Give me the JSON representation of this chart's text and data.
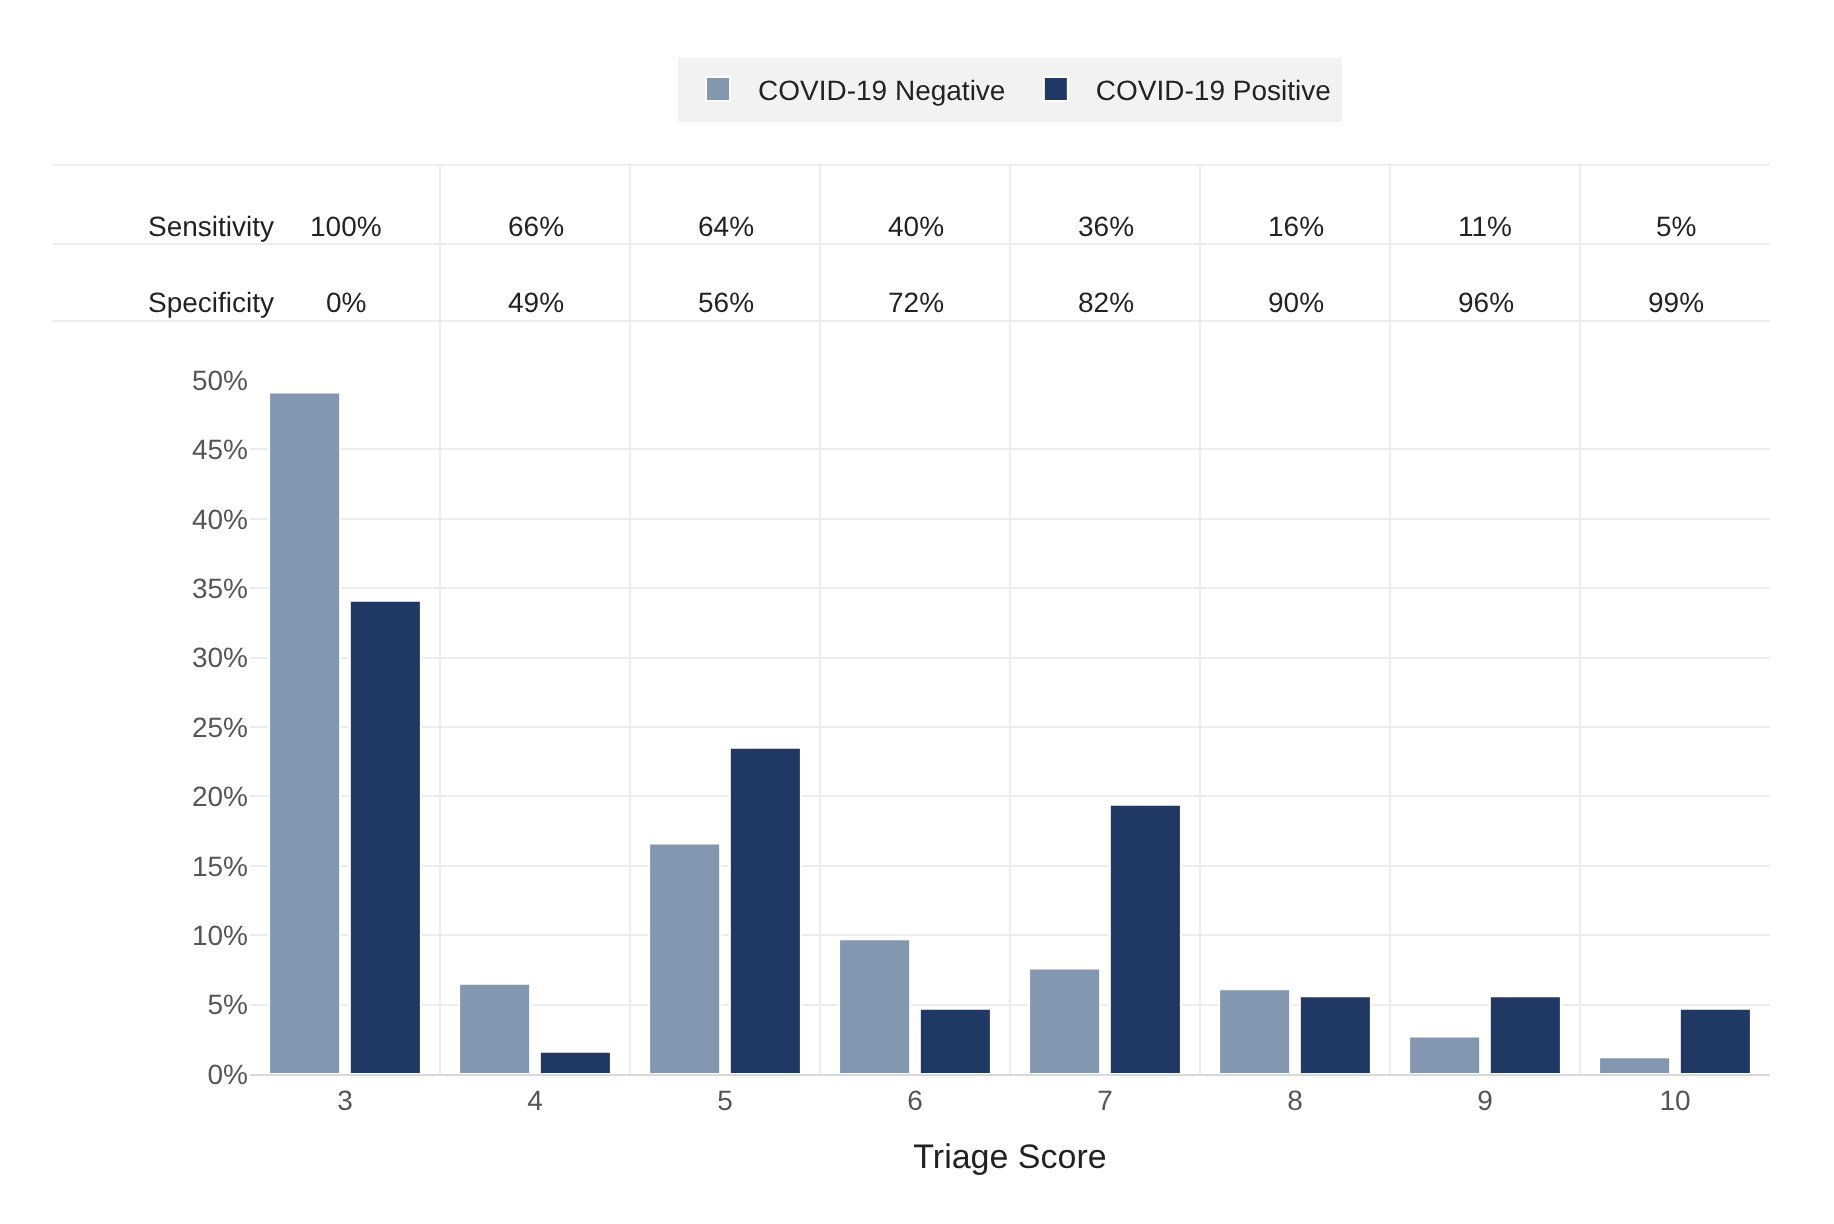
{
  "chart_data": {
    "type": "bar",
    "xlabel": "Triage Score",
    "categories": [
      "3",
      "4",
      "5",
      "6",
      "7",
      "8",
      "9",
      "10"
    ],
    "series": [
      {
        "name": "COVID-19 Negative",
        "color": "#8497b0",
        "values": [
          49.1,
          6.5,
          16.6,
          9.7,
          7.6,
          6.1,
          2.7,
          1.2
        ]
      },
      {
        "name": "COVID-19 Positive",
        "color": "#203864",
        "values": [
          34.1,
          1.6,
          23.5,
          4.7,
          19.4,
          5.6,
          5.6,
          4.7
        ]
      }
    ],
    "ylim": [
      0,
      50
    ],
    "yticks": [
      {
        "value": 0,
        "label": "0%"
      },
      {
        "value": 5,
        "label": "5%"
      },
      {
        "value": 10,
        "label": "10%"
      },
      {
        "value": 15,
        "label": "15%"
      },
      {
        "value": 20,
        "label": "20%"
      },
      {
        "value": 25,
        "label": "25%"
      },
      {
        "value": 30,
        "label": "30%"
      },
      {
        "value": 35,
        "label": "35%"
      },
      {
        "value": 40,
        "label": "40%"
      },
      {
        "value": 45,
        "label": "45%"
      },
      {
        "value": 50,
        "label": "50%"
      }
    ],
    "grid": true,
    "legend": "top",
    "annotations": [
      "Sensitivity",
      "100%",
      "66%",
      "64%",
      "40%",
      "36%",
      "16%",
      "11%",
      "5%",
      "Specificity",
      "0%",
      "49%",
      "56%",
      "72%",
      "82%",
      "90%",
      "96%",
      "99%"
    ]
  }
}
